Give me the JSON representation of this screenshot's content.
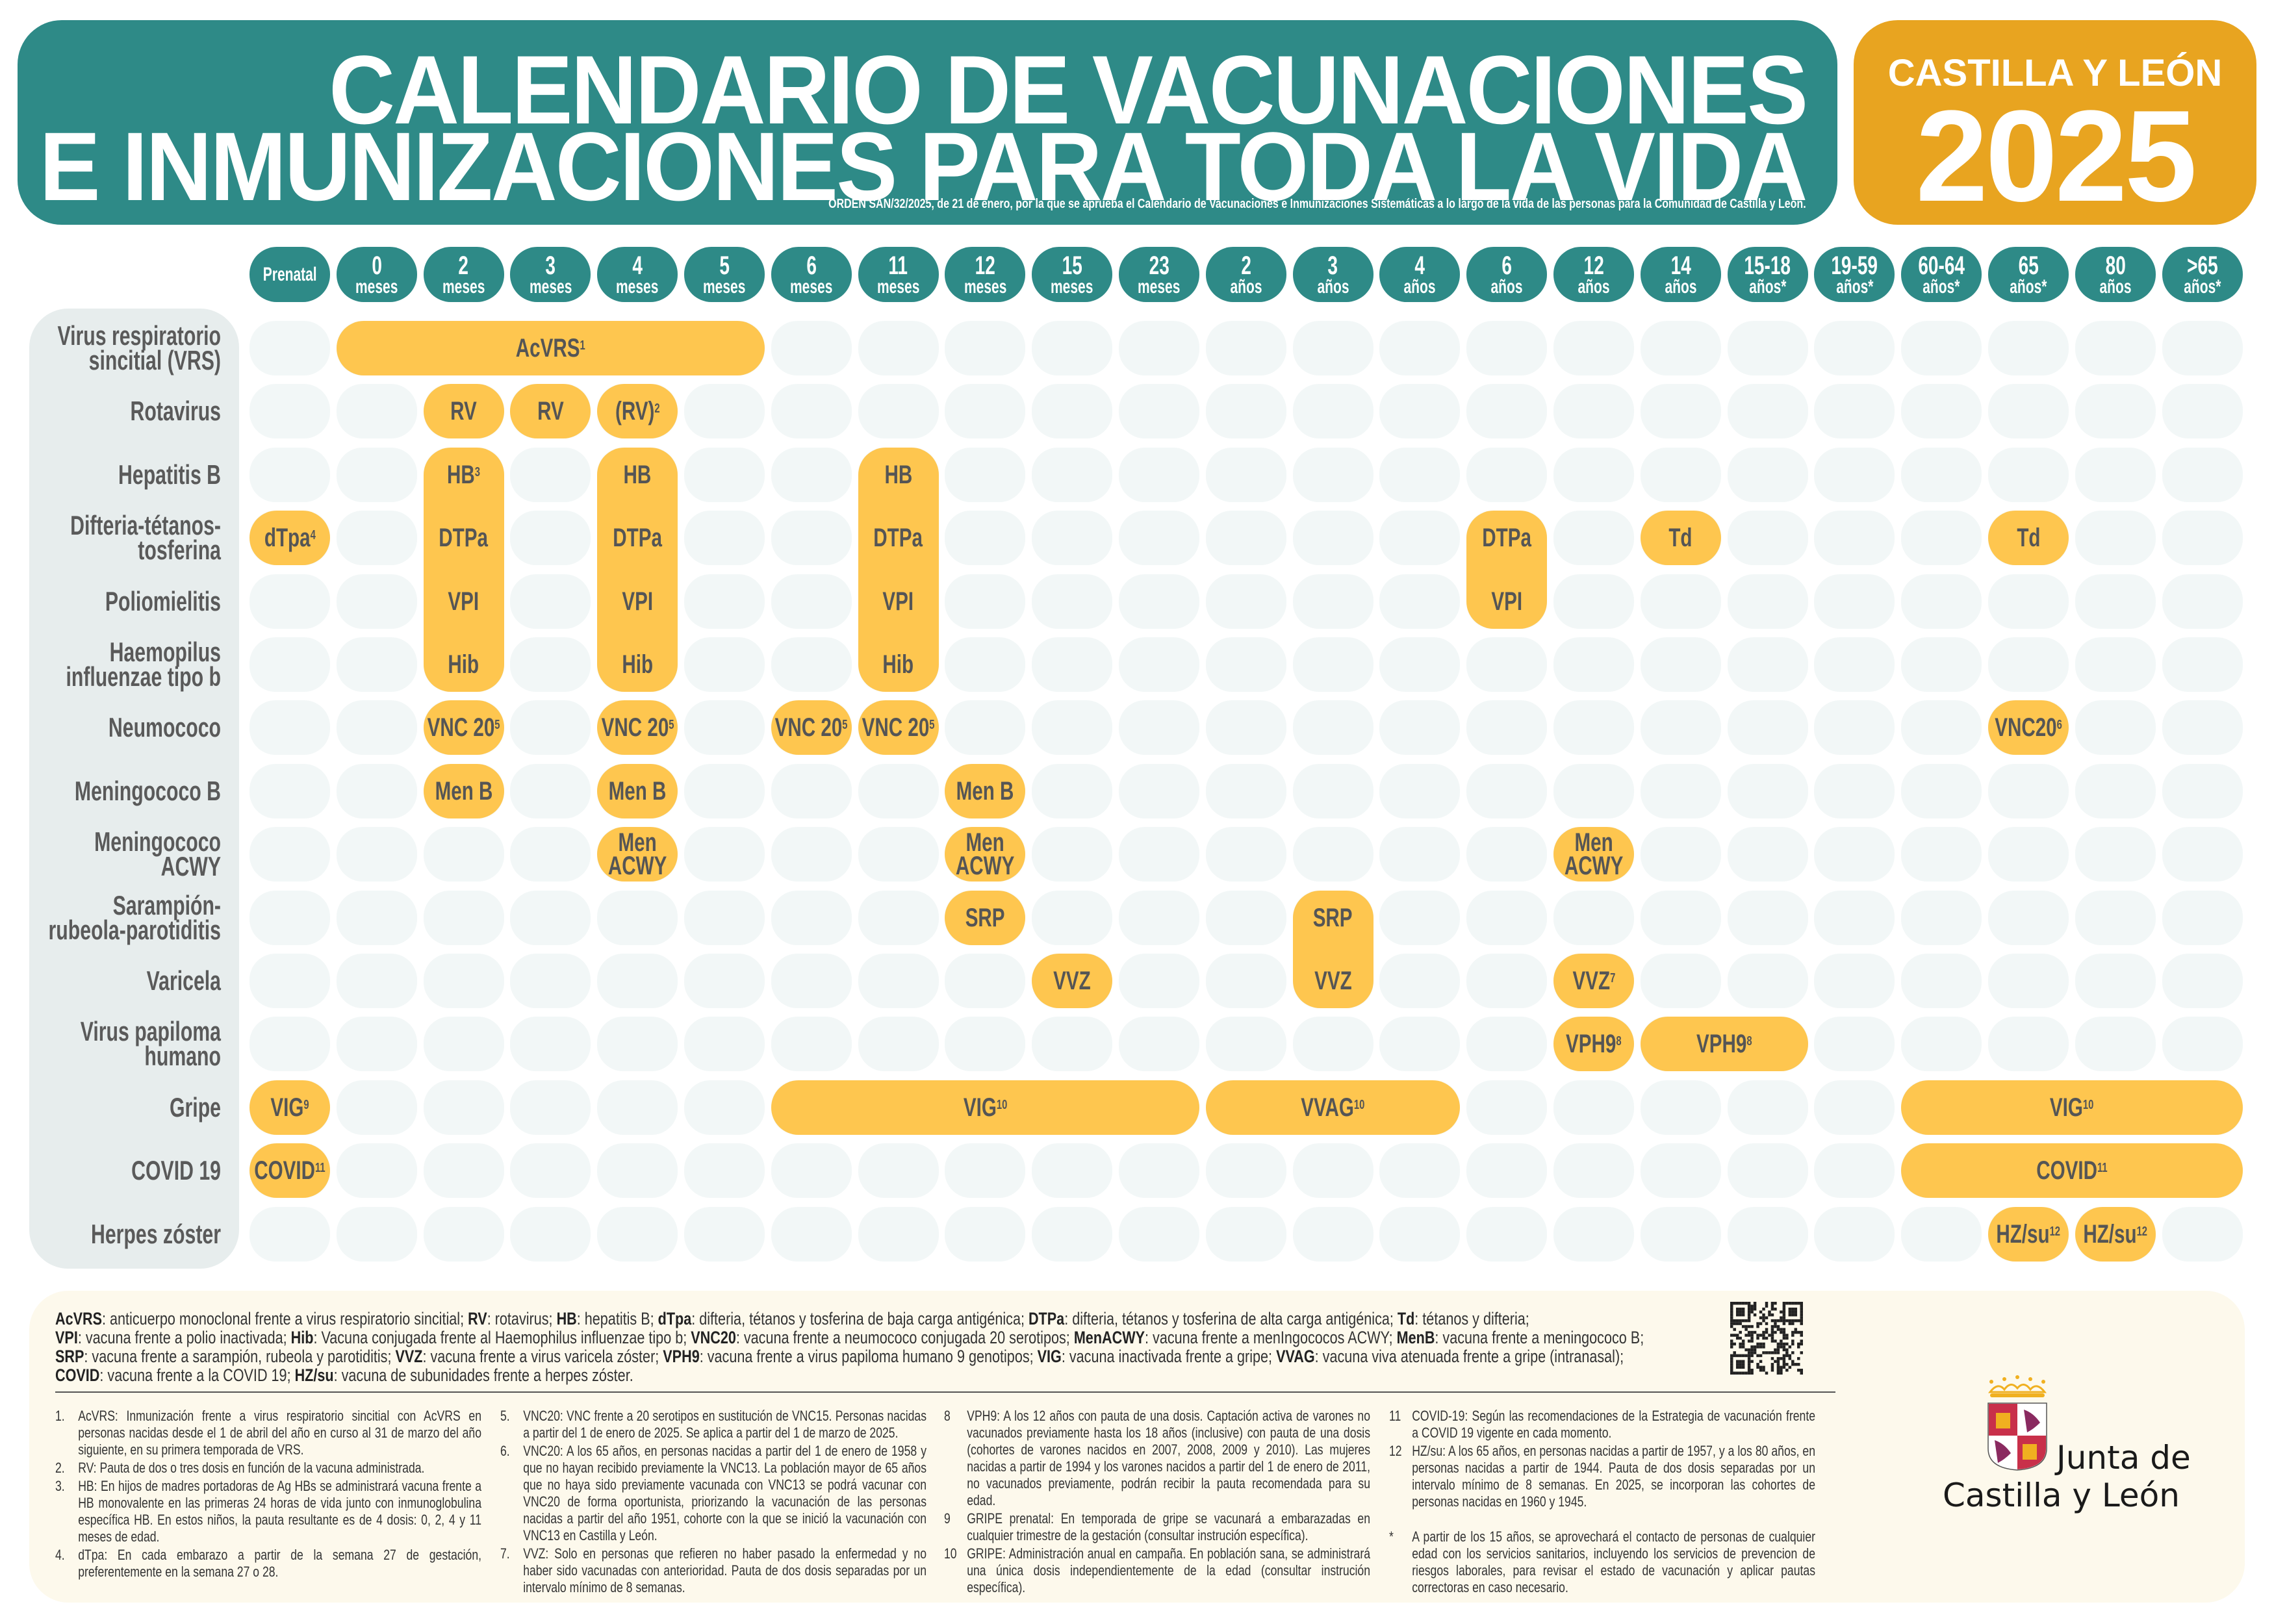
{
  "header": {
    "title_line1": "CALENDARIO DE VACUNACIONES",
    "title_line2": "E INMUNIZACIONES PARA TODA LA VIDA",
    "subtitle": "ORDEN SAN/32/2025, de 21 de enero, por la que se aprueba el Calendario de Vacunaciones e Inmunizaciones Sistemáticas a lo largo de la vida de las personas para la Comunidad de Castilla y León.",
    "region": "CASTILLA Y LEÓN",
    "year": "2025"
  },
  "colors": {
    "teal": "#2e8a87",
    "orange": "#e8a420",
    "vaccine": "#fec64f",
    "empty_cell": "#f2f7f7",
    "panel": "#e7eded",
    "legend_bg": "#fdf9ec"
  },
  "columns": [
    {
      "a": "Prenatal",
      "b": ""
    },
    {
      "a": "0",
      "b": "meses"
    },
    {
      "a": "2",
      "b": "meses"
    },
    {
      "a": "3",
      "b": "meses"
    },
    {
      "a": "4",
      "b": "meses"
    },
    {
      "a": "5",
      "b": "meses"
    },
    {
      "a": "6",
      "b": "meses"
    },
    {
      "a": "11",
      "b": "meses"
    },
    {
      "a": "12",
      "b": "meses"
    },
    {
      "a": "15",
      "b": "meses"
    },
    {
      "a": "23",
      "b": "meses"
    },
    {
      "a": "2",
      "b": "años"
    },
    {
      "a": "3",
      "b": "años"
    },
    {
      "a": "4",
      "b": "años"
    },
    {
      "a": "6",
      "b": "años"
    },
    {
      "a": "12",
      "b": "años"
    },
    {
      "a": "14",
      "b": "años"
    },
    {
      "a": "15-18",
      "b": "años*"
    },
    {
      "a": "19-59",
      "b": "años*"
    },
    {
      "a": "60-64",
      "b": "años*"
    },
    {
      "a": "65",
      "b": "años*"
    },
    {
      "a": "80",
      "b": "años"
    },
    {
      "a": ">65",
      "b": "años*"
    }
  ],
  "rows": [
    [
      "Virus respiratorio",
      "sincitial (VRS)"
    ],
    [
      "Rotavirus"
    ],
    [
      "Hepatitis B"
    ],
    [
      "Difteria-tétanos-",
      "tosferina"
    ],
    [
      "Poliomielitis"
    ],
    [
      "Haemopilus",
      "influenzae tipo b"
    ],
    [
      "Neumococo"
    ],
    [
      "Meningococo B"
    ],
    [
      "Meningococo",
      "ACWY"
    ],
    [
      "Sarampión-",
      "rubeola-parotiditis"
    ],
    [
      "Varicela"
    ],
    [
      "Virus papiloma",
      "humano"
    ],
    [
      "Gripe"
    ],
    [
      "COVID 19"
    ],
    [
      "Herpes zóster"
    ]
  ],
  "entries": [
    {
      "row": 0,
      "col": 1,
      "cspan": 5,
      "rspan": 1,
      "labels": [
        {
          "t": "AcVRS",
          "s": "1"
        }
      ]
    },
    {
      "row": 1,
      "col": 2,
      "cspan": 1,
      "rspan": 1,
      "labels": [
        {
          "t": "RV",
          "s": ""
        }
      ]
    },
    {
      "row": 1,
      "col": 3,
      "cspan": 1,
      "rspan": 1,
      "labels": [
        {
          "t": "RV",
          "s": ""
        }
      ]
    },
    {
      "row": 1,
      "col": 4,
      "cspan": 1,
      "rspan": 1,
      "labels": [
        {
          "t": "(RV)",
          "s": "2"
        }
      ]
    },
    {
      "row": 2,
      "col": 2,
      "cspan": 1,
      "rspan": 4,
      "labels": [
        {
          "t": "HB",
          "s": "3"
        },
        {
          "t": "DTPa",
          "s": ""
        },
        {
          "t": "VPI",
          "s": ""
        },
        {
          "t": "Hib",
          "s": ""
        }
      ]
    },
    {
      "row": 2,
      "col": 4,
      "cspan": 1,
      "rspan": 4,
      "labels": [
        {
          "t": "HB",
          "s": ""
        },
        {
          "t": "DTPa",
          "s": ""
        },
        {
          "t": "VPI",
          "s": ""
        },
        {
          "t": "Hib",
          "s": ""
        }
      ]
    },
    {
      "row": 2,
      "col": 7,
      "cspan": 1,
      "rspan": 4,
      "labels": [
        {
          "t": "HB",
          "s": ""
        },
        {
          "t": "DTPa",
          "s": ""
        },
        {
          "t": "VPI",
          "s": ""
        },
        {
          "t": "Hib",
          "s": ""
        }
      ]
    },
    {
      "row": 3,
      "col": 0,
      "cspan": 1,
      "rspan": 1,
      "labels": [
        {
          "t": "dTpa",
          "s": "4"
        }
      ]
    },
    {
      "row": 3,
      "col": 14,
      "cspan": 1,
      "rspan": 2,
      "labels": [
        {
          "t": "DTPa",
          "s": ""
        },
        {
          "t": "VPI",
          "s": ""
        }
      ]
    },
    {
      "row": 3,
      "col": 16,
      "cspan": 1,
      "rspan": 1,
      "labels": [
        {
          "t": "Td",
          "s": ""
        }
      ]
    },
    {
      "row": 3,
      "col": 20,
      "cspan": 1,
      "rspan": 1,
      "labels": [
        {
          "t": "Td",
          "s": ""
        }
      ]
    },
    {
      "row": 6,
      "col": 2,
      "cspan": 1,
      "rspan": 1,
      "labels": [
        {
          "t": "VNC 20",
          "s": "5"
        }
      ]
    },
    {
      "row": 6,
      "col": 4,
      "cspan": 1,
      "rspan": 1,
      "labels": [
        {
          "t": "VNC 20",
          "s": "5"
        }
      ]
    },
    {
      "row": 6,
      "col": 6,
      "cspan": 1,
      "rspan": 1,
      "labels": [
        {
          "t": "VNC 20",
          "s": "5"
        }
      ]
    },
    {
      "row": 6,
      "col": 7,
      "cspan": 1,
      "rspan": 1,
      "labels": [
        {
          "t": "VNC 20",
          "s": "5"
        }
      ]
    },
    {
      "row": 6,
      "col": 20,
      "cspan": 1,
      "rspan": 1,
      "labels": [
        {
          "t": "VNC20",
          "s": "6"
        }
      ]
    },
    {
      "row": 7,
      "col": 2,
      "cspan": 1,
      "rspan": 1,
      "labels": [
        {
          "t": "Men B",
          "s": ""
        }
      ]
    },
    {
      "row": 7,
      "col": 4,
      "cspan": 1,
      "rspan": 1,
      "labels": [
        {
          "t": "Men B",
          "s": ""
        }
      ]
    },
    {
      "row": 7,
      "col": 8,
      "cspan": 1,
      "rspan": 1,
      "labels": [
        {
          "t": "Men B",
          "s": ""
        }
      ]
    },
    {
      "row": 8,
      "col": 4,
      "cspan": 1,
      "rspan": 1,
      "labels": [
        {
          "t": "Men|ACWY",
          "s": ""
        }
      ]
    },
    {
      "row": 8,
      "col": 8,
      "cspan": 1,
      "rspan": 1,
      "labels": [
        {
          "t": "Men|ACWY",
          "s": ""
        }
      ]
    },
    {
      "row": 8,
      "col": 15,
      "cspan": 1,
      "rspan": 1,
      "labels": [
        {
          "t": "Men|ACWY",
          "s": ""
        }
      ]
    },
    {
      "row": 9,
      "col": 8,
      "cspan": 1,
      "rspan": 1,
      "labels": [
        {
          "t": "SRP",
          "s": ""
        }
      ]
    },
    {
      "row": 9,
      "col": 12,
      "cspan": 1,
      "rspan": 2,
      "labels": [
        {
          "t": "SRP",
          "s": ""
        },
        {
          "t": "VVZ",
          "s": ""
        }
      ]
    },
    {
      "row": 10,
      "col": 9,
      "cspan": 1,
      "rspan": 1,
      "labels": [
        {
          "t": "VVZ",
          "s": ""
        }
      ]
    },
    {
      "row": 10,
      "col": 15,
      "cspan": 1,
      "rspan": 1,
      "labels": [
        {
          "t": "VVZ",
          "s": "7"
        }
      ]
    },
    {
      "row": 11,
      "col": 15,
      "cspan": 1,
      "rspan": 1,
      "labels": [
        {
          "t": "VPH9",
          "s": "8"
        }
      ]
    },
    {
      "row": 11,
      "col": 16,
      "cspan": 2,
      "rspan": 1,
      "labels": [
        {
          "t": "VPH9",
          "s": "8"
        }
      ]
    },
    {
      "row": 12,
      "col": 0,
      "cspan": 1,
      "rspan": 1,
      "labels": [
        {
          "t": "VIG",
          "s": "9"
        }
      ]
    },
    {
      "row": 12,
      "col": 6,
      "cspan": 5,
      "rspan": 1,
      "labels": [
        {
          "t": "VIG",
          "s": "10"
        }
      ]
    },
    {
      "row": 12,
      "col": 11,
      "cspan": 3,
      "rspan": 1,
      "labels": [
        {
          "t": "VVAG",
          "s": "10"
        }
      ]
    },
    {
      "row": 12,
      "col": 19,
      "cspan": 4,
      "rspan": 1,
      "labels": [
        {
          "t": "VIG",
          "s": "10"
        }
      ]
    },
    {
      "row": 13,
      "col": 0,
      "cspan": 1,
      "rspan": 1,
      "labels": [
        {
          "t": "COVID",
          "s": "11"
        }
      ]
    },
    {
      "row": 13,
      "col": 19,
      "cspan": 4,
      "rspan": 1,
      "labels": [
        {
          "t": "COVID",
          "s": "11"
        }
      ]
    },
    {
      "row": 14,
      "col": 20,
      "cspan": 1,
      "rspan": 1,
      "labels": [
        {
          "t": "HZ/su",
          "s": "12"
        }
      ]
    },
    {
      "row": 14,
      "col": 21,
      "cspan": 1,
      "rspan": 1,
      "labels": [
        {
          "t": "HZ/su",
          "s": "12"
        }
      ]
    }
  ],
  "legend": [
    [
      [
        "AcVRS",
        ": anticuerpo monoclonal frente a virus respiratorio sincitial; "
      ],
      [
        "RV",
        ": rotavirus; "
      ],
      [
        "HB",
        ": hepatitis B; "
      ],
      [
        "dTpa",
        ": difteria, tétanos y tosferina de baja carga antigénica; "
      ],
      [
        "DTPa",
        ": difteria, tétanos y tosferina de alta carga antigénica; "
      ],
      [
        "Td",
        ": tétanos y difteria;"
      ]
    ],
    [
      [
        "VPI",
        ": vacuna frente a polio inactivada; "
      ],
      [
        "Hib",
        ": Vacuna conjugada frente al Haemophilus influenzae tipo b; "
      ],
      [
        "VNC20",
        ": vacuna frente a neumococo conjugada 20 serotipos; "
      ],
      [
        "MenACWY",
        ": vacuna frente a menIngococos ACWY; "
      ],
      [
        "MenB",
        ": vacuna frente a meningococo B;"
      ]
    ],
    [
      [
        "SRP",
        ": vacuna frente a sarampión, rubeola y parotiditis; "
      ],
      [
        "VVZ",
        ": vacuna frente a virus varicela zóster; "
      ],
      [
        "VPH9",
        ": vacuna frente a virus papiloma humano 9 genotipos; "
      ],
      [
        "VIG",
        ": vacuna inactivada frente a gripe; "
      ],
      [
        "VVAG",
        ": vacuna viva atenuada frente a gripe (intranasal);"
      ]
    ],
    [
      [
        "COVID",
        ": vacuna frente a la COVID 19; "
      ],
      [
        "HZ/su",
        ": vacuna de subunidades frente a herpes zóster."
      ]
    ]
  ],
  "footnotes": [
    [
      {
        "n": "1.",
        "x": "AcVRS: Inmunización frente a virus respiratorio sincitial con AcVRS en personas nacidas desde el 1 de abril del año en curso al 31 de marzo del año siguiente, en su primera temporada de VRS."
      },
      {
        "n": "2.",
        "x": "RV: Pauta de dos o tres dosis en función de la vacuna administrada."
      },
      {
        "n": "3.",
        "x": "HB: En hijos de madres portadoras de Ag HBs se administrará vacuna frente a HB monovalente en las primeras 24 horas de vida junto con inmunoglobulina específica HB. En estos niños, la pauta resultante es de 4 dosis: 0, 2, 4 y 11 meses de edad."
      },
      {
        "n": "4.",
        "x": "dTpa: En cada embarazo a partir de la semana 27 de gestación, preferentemente en la semana 27 o 28."
      }
    ],
    [
      {
        "n": "5.",
        "x": "VNC20: VNC frente a 20 serotipos en sustitución de VNC15. Personas nacidas a partir del 1 de enero de 2025. Se aplica a partir del 1 de marzo de 2025."
      },
      {
        "n": "6.",
        "x": "VNC20: A los 65 años, en personas nacidas a partir del 1 de enero de 1958 y que no hayan recibido previamente la VNC13. La población mayor de 65 años que no haya sido previamente vacunada con VNC13 se podrá vacunar con VNC20 de forma oportunista, priorizando la vacunación de las personas nacidas a partir del año 1951, cohorte con la que se inició la vacunación con VNC13 en Castilla y León."
      },
      {
        "n": "7.",
        "x": "VVZ: Solo en personas que refieren no haber pasado la enfermedad y no haber sido vacunadas con anterioridad. Pauta de dos dosis separadas por un intervalo mínimo de 8 semanas."
      }
    ],
    [
      {
        "n": "8",
        "x": "VPH9: A los 12 años con pauta de una dosis. Captación activa de varones no vacunados previamente hasta los 18 años (inclusive) con pauta de una dosis (cohortes de varones nacidos en 2007, 2008, 2009 y 2010). Las mujeres nacidas a partir de 1994 y los varones nacidos a partir del 1 de enero de 2011, no vacunados previamente, podrán recibir la pauta recomendada para su edad."
      },
      {
        "n": "9",
        "x": "GRIPE prenatal: En temporada de gripe se vacunará a embarazadas en cualquier trimestre de la gestación (consultar instrución específica)."
      },
      {
        "n": "10",
        "x": "GRIPE: Administración anual en campaña. En población sana, se administrará una única dosis independientemente de la edad (consultar instrución específica)."
      }
    ],
    [
      {
        "n": "11",
        "x": "COVID-19: Según las recomendaciones de la Estrategia de vacunación frente a COVID 19 vigente en cada momento."
      },
      {
        "n": "12",
        "x": "HZ/su: A los 65 años, en personas nacidas a partir de 1957, y a los 80 años, en personas nacidas a partir de 1944. Pauta de dos dosis separadas por un intervalo mínimo de 8 semanas. En 2025, se incorporan las cohortes de personas nacidas en 1960 y 1945."
      },
      {
        "n": "*",
        "x": "A partir de los 15 años, se aprovechará el contacto de personas de cualquier edad con los servicios sanitarios, incluyendo los servicios de prevencion de riesgos laborales, para revisar el estado de vacunación y aplicar pautas correctoras en caso necesario."
      }
    ]
  ],
  "logo": {
    "line1": "Junta de",
    "line2": "Castilla y León"
  },
  "icons": {
    "qr": "qr-code-icon",
    "coat_of_arms": "coat-of-arms-icon"
  }
}
